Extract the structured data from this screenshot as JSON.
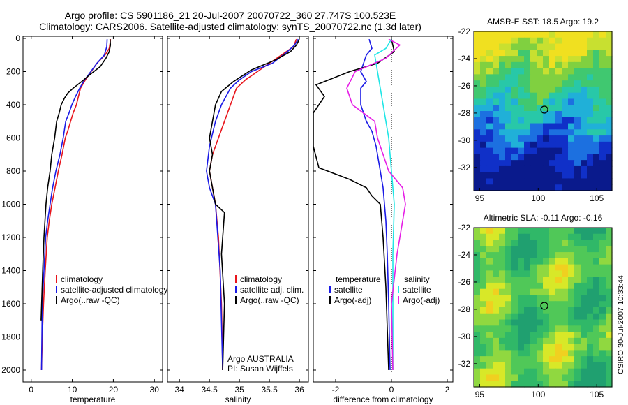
{
  "header": {
    "line1": "Argo profile: CS 5901186_21 20-Jul-2007 20070722_360 27.747S 100.523E",
    "line2": "Climatology: CARS2006. Satellite-adjusted climatology: synTS_20070722.nc (1.3d later)"
  },
  "side_stamp": "CSIRO 30-Jul-2007 10:33:44",
  "colors": {
    "climatology": "#e8151c",
    "satellite": "#1a1ae6",
    "argo": "#000000",
    "sat_sal": "#20e6e6",
    "argo_sal": "#e61ee6"
  },
  "chart_data": [
    {
      "type": "line",
      "id": "temperature",
      "xlabel": "temperature",
      "ylabel": "",
      "xlim": [
        -2,
        32
      ],
      "ylim": [
        2050,
        0
      ],
      "xticks": [
        0,
        10,
        20,
        30
      ],
      "yticks": [
        0,
        200,
        400,
        600,
        800,
        1000,
        1200,
        1400,
        1600,
        1800,
        2000
      ],
      "legend": [
        "climatology",
        "satellite-adjusted climatology",
        "Argo(..raw -QC)"
      ],
      "series": [
        {
          "name": "climatology",
          "color": "#e8151c",
          "x": [
            19.3,
            19.2,
            19,
            18,
            16,
            14.6,
            13.2,
            12,
            11,
            10.2,
            9.6,
            9,
            8.3,
            7.5,
            6.6,
            5.8,
            5,
            4.4,
            3.9,
            3.4,
            3,
            2.7,
            2.5
          ],
          "y": [
            5,
            30,
            60,
            100,
            150,
            200,
            250,
            300,
            400,
            450,
            500,
            550,
            600,
            700,
            800,
            900,
            1000,
            1100,
            1200,
            1400,
            1600,
            1800,
            2000
          ]
        },
        {
          "name": "satellite-adjusted climatology",
          "color": "#1a1ae6",
          "x": [
            18.5,
            18.4,
            17.8,
            16,
            14.5,
            13,
            11.8,
            10.8,
            9.9,
            9.2,
            8.4,
            7.8,
            7,
            6,
            5.2,
            4.6,
            4,
            3.5,
            3.1,
            2.7,
            2.5
          ],
          "y": [
            5,
            50,
            100,
            150,
            200,
            250,
            300,
            350,
            400,
            450,
            500,
            600,
            700,
            800,
            900,
            1000,
            1100,
            1200,
            1400,
            1600,
            2000
          ]
        },
        {
          "name": "Argo(..raw -QC)",
          "color": "#000000",
          "x": [
            19.2,
            19.3,
            19,
            18.2,
            16.8,
            14.2,
            12.3,
            10.2,
            8.9,
            8.1,
            7.3,
            6.8,
            6.2,
            5.7,
            5,
            4.6,
            4,
            3.6,
            3.1,
            2.8,
            2.4
          ],
          "y": [
            5,
            40,
            80,
            120,
            170,
            220,
            260,
            300,
            330,
            360,
            400,
            450,
            500,
            600,
            700,
            800,
            900,
            1000,
            1200,
            1400,
            1700
          ]
        }
      ]
    },
    {
      "type": "line",
      "id": "salinity",
      "xlabel": "salinity",
      "ylabel": "",
      "xlim": [
        33.8,
        36.15
      ],
      "ylim": [
        2050,
        0
      ],
      "xticks": [
        34,
        34.5,
        35,
        35.5,
        36
      ],
      "legend": [
        "climatology",
        "satellite adj. clim.",
        "Argo(..raw -QC)"
      ],
      "annotation": [
        "Argo AUSTRALIA",
        "PI: Susan Wijffels"
      ],
      "series": [
        {
          "name": "climatology",
          "color": "#e8151c",
          "x": [
            35.95,
            35.9,
            35.7,
            35.5,
            35.3,
            35.1,
            34.95,
            34.85,
            34.75,
            34.65,
            34.55,
            34.5,
            34.55,
            34.6,
            34.65,
            34.7,
            34.72
          ],
          "y": [
            5,
            50,
            100,
            150,
            200,
            250,
            300,
            400,
            500,
            600,
            700,
            800,
            900,
            1000,
            1200,
            1600,
            2000
          ]
        },
        {
          "name": "satellite adj. clim.",
          "color": "#1a1ae6",
          "x": [
            35.98,
            35.92,
            35.8,
            35.55,
            35.2,
            35,
            34.85,
            34.7,
            34.6,
            34.5,
            34.45,
            34.5,
            34.6,
            34.68,
            34.72
          ],
          "y": [
            5,
            40,
            80,
            150,
            200,
            250,
            300,
            400,
            500,
            650,
            800,
            900,
            1000,
            1400,
            2000
          ]
        },
        {
          "name": "Argo(..raw -QC)",
          "color": "#000000",
          "x": [
            36,
            35.95,
            35.85,
            35.6,
            35.2,
            34.9,
            34.7,
            34.6,
            34.55,
            34.5,
            34.55,
            34.5,
            34.55,
            34.6,
            34.75,
            34.7,
            34.75,
            34.72
          ],
          "y": [
            5,
            40,
            80,
            130,
            190,
            260,
            320,
            400,
            500,
            600,
            700,
            800,
            900,
            1000,
            1050,
            1300,
            1600,
            2000
          ]
        }
      ]
    },
    {
      "type": "line",
      "id": "difference",
      "xlabel": "difference from climatology",
      "ylabel": "",
      "xlim": [
        -2.8,
        2.2
      ],
      "ylim": [
        2050,
        0
      ],
      "xticks": [
        -2,
        0,
        2
      ],
      "legend": [
        "temperature",
        "satellite",
        "Argo(-adj)",
        "salinity",
        "satellite",
        "Argo(-adj)"
      ],
      "series": [
        {
          "name": "temperature satellite",
          "color": "#1a1ae6",
          "x": [
            -0.8,
            -0.7,
            -0.9,
            -1.1,
            -0.9,
            -1.1,
            -1.1,
            -0.9,
            -0.7,
            -0.55,
            -0.4,
            -0.3,
            -0.25,
            -0.2,
            -0.15,
            -0.1,
            -0.05
          ],
          "y": [
            5,
            60,
            100,
            200,
            260,
            300,
            400,
            500,
            560,
            650,
            800,
            900,
            1000,
            1100,
            1300,
            1600,
            2000
          ]
        },
        {
          "name": "temperature Argo(-adj)",
          "color": "#000000",
          "x": [
            0,
            0.1,
            -0.5,
            -1.5,
            -2.7,
            -2.4,
            -2.8,
            -2.8,
            -2.6,
            -1.5,
            -0.9,
            -0.7,
            -0.4,
            -0.3,
            -0.2,
            -0.1
          ],
          "y": [
            5,
            80,
            150,
            200,
            280,
            350,
            450,
            650,
            780,
            850,
            900,
            950,
            1000,
            1200,
            1500,
            2000
          ]
        },
        {
          "name": "salinity satellite",
          "color": "#20e6e6",
          "x": [
            0,
            -0.2,
            -0.6,
            -0.5,
            -0.3,
            -0.1,
            0,
            0.05,
            0.1,
            0.05,
            0.05,
            0.05
          ],
          "y": [
            5,
            60,
            100,
            200,
            400,
            600,
            800,
            900,
            1000,
            1300,
            1700,
            2000
          ]
        },
        {
          "name": "salinity Argo(-adj)",
          "color": "#e61ee6",
          "x": [
            -0.1,
            0.3,
            -0.2,
            -1.3,
            -1.6,
            -1.4,
            -0.6,
            -0.5,
            -0.3,
            -0.1,
            0.4,
            0.5,
            0.4,
            0.2,
            0,
            0.05
          ],
          "y": [
            5,
            40,
            120,
            200,
            300,
            400,
            500,
            600,
            700,
            800,
            900,
            1000,
            1100,
            1300,
            1600,
            2000
          ]
        }
      ]
    },
    {
      "type": "heatmap",
      "id": "sst",
      "title": "AMSR-E SST: 18.5 Argo: 19.2",
      "xlim": [
        94.5,
        106.3
      ],
      "ylim": [
        -33.7,
        -22
      ],
      "xticks": [
        95,
        100,
        105
      ],
      "yticks": [
        -22,
        -24,
        -26,
        -28,
        -30,
        -32
      ],
      "marker": {
        "lon": 100.523,
        "lat": -27.747
      }
    },
    {
      "type": "heatmap",
      "id": "sla",
      "title": "Altimetric SLA: -0.11 Argo: -0.16",
      "xlim": [
        94.5,
        106.3
      ],
      "ylim": [
        -33.7,
        -22
      ],
      "xticks": [
        95,
        100,
        105
      ],
      "yticks": [
        -22,
        -24,
        -26,
        -28,
        -30,
        -32
      ],
      "marker": {
        "lon": 100.523,
        "lat": -27.747
      }
    }
  ]
}
